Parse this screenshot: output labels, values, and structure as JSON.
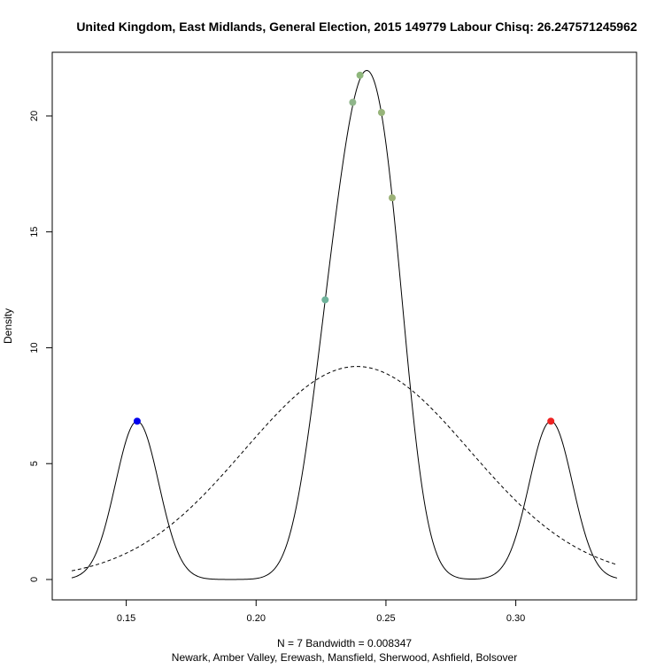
{
  "chart_data": {
    "type": "line",
    "title": "United Kingdom, East Midlands, General Election, 2015 149779 Labour Chisq: 26.247571245962",
    "xlabel_line1": "N = 7   Bandwidth = 0.008347",
    "xlabel_line2": "Newark, Amber Valley, Erewash, Mansfield, Sherwood, Ashfield, Bolsover",
    "ylabel": "Density",
    "xlim": [
      0.1215,
      0.3465
    ],
    "ylim": [
      -0.88,
      22.75
    ],
    "x_ticks": [
      0.15,
      0.2,
      0.25,
      0.3
    ],
    "x_tick_labels": [
      "0.15",
      "0.20",
      "0.25",
      "0.30"
    ],
    "y_ticks": [
      0,
      5,
      10,
      15,
      20
    ],
    "y_tick_labels": [
      "0",
      "5",
      "10",
      "15",
      "20"
    ],
    "bandwidth": 0.008347,
    "kde_range": [
      0.129,
      0.339
    ],
    "normal_curve": {
      "mean": 0.2388,
      "sd": 0.0434,
      "style": "dashed"
    },
    "points": [
      {
        "x": 0.1542,
        "y": 6.83,
        "color": "#0000ee"
      },
      {
        "x": 0.2266,
        "y": 12.07,
        "color": "#6fb39b"
      },
      {
        "x": 0.2372,
        "y": 20.59,
        "color": "#8fb58a"
      },
      {
        "x": 0.24,
        "y": 21.76,
        "color": "#8fb77c"
      },
      {
        "x": 0.2483,
        "y": 20.15,
        "color": "#97b47a"
      },
      {
        "x": 0.2524,
        "y": 16.47,
        "color": "#9cb278"
      },
      {
        "x": 0.3135,
        "y": 6.83,
        "color": "#ee2222"
      }
    ]
  }
}
